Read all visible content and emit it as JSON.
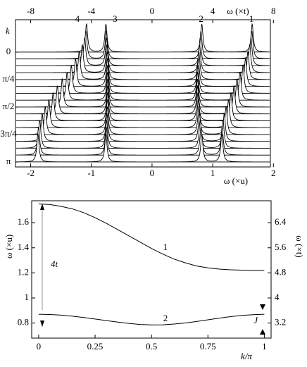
{
  "chart_data": [
    {
      "type": "waterfall",
      "x_label": "ω (×u)",
      "x2_label": "ω (×t)",
      "y_label": "k",
      "xlim": [
        -2.25,
        1.95
      ],
      "xticks": [
        -2,
        -1,
        0,
        1,
        2
      ],
      "x2lim": [
        -9,
        7.8
      ],
      "x2ticks": [
        -8,
        -4,
        0,
        4,
        8
      ],
      "k": [
        0,
        0.0625,
        0.125,
        0.1875,
        0.25,
        0.3125,
        0.375,
        0.4375,
        0.5,
        0.5625,
        0.625,
        0.6875,
        0.75,
        0.8125,
        0.875,
        0.9375,
        1
      ],
      "yticks": [
        {
          "value": 0,
          "label": "0"
        },
        {
          "value": 0.25,
          "label": "π/4"
        },
        {
          "value": 0.5,
          "label": "π/2"
        },
        {
          "value": 0.75,
          "label": "3π/4"
        },
        {
          "value": 1,
          "label": "π"
        }
      ],
      "series": [
        {
          "name": "4",
          "values": [
            -1.08,
            -1.09,
            -1.11,
            -1.15,
            -1.2,
            -1.26,
            -1.33,
            -1.4,
            -1.48,
            -1.56,
            -1.63,
            -1.7,
            -1.76,
            -1.81,
            -1.85,
            -1.87,
            -1.88
          ]
        },
        {
          "name": "3",
          "values": [
            -0.76,
            -0.754,
            -0.749,
            -0.743,
            -0.739,
            -0.735,
            -0.732,
            -0.731,
            -0.73,
            -0.731,
            -0.732,
            -0.735,
            -0.739,
            -0.743,
            -0.749,
            -0.754,
            -0.76
          ]
        },
        {
          "name": "2",
          "values": [
            0.82,
            0.806,
            0.793,
            0.781,
            0.771,
            0.762,
            0.755,
            0.751,
            0.75,
            0.751,
            0.755,
            0.762,
            0.771,
            0.781,
            0.793,
            0.806,
            0.82
          ]
        },
        {
          "name": "1",
          "values": [
            1.65,
            1.645,
            1.63,
            1.61,
            1.58,
            1.54,
            1.5,
            1.45,
            1.4,
            1.35,
            1.3,
            1.26,
            1.22,
            1.19,
            1.17,
            1.155,
            1.15
          ]
        }
      ]
    },
    {
      "type": "line",
      "x_label": "k/π",
      "y_label": "ω (×u)",
      "y2_label": "ω (×t)",
      "x": [
        0,
        0.05,
        0.1,
        0.15,
        0.2,
        0.25,
        0.3,
        0.35,
        0.4,
        0.45,
        0.5,
        0.55,
        0.6,
        0.65,
        0.7,
        0.75,
        0.8,
        0.85,
        0.9,
        0.95,
        1
      ],
      "xlim": [
        -0.031,
        1.03
      ],
      "xticks": [
        0,
        0.25,
        0.5,
        0.75,
        1
      ],
      "ylim": [
        0.68,
        1.775
      ],
      "yticks": [
        0.8,
        1,
        1.2,
        1.4,
        1.6
      ],
      "y2lim": [
        2.72,
        7.1
      ],
      "y2ticks": [
        3.2,
        4,
        4.8,
        5.6,
        6.4
      ],
      "series": [
        {
          "name": "1",
          "color": "#000000",
          "values": [
            1.75,
            1.745,
            1.73,
            1.71,
            1.68,
            1.64,
            1.595,
            1.545,
            1.495,
            1.445,
            1.395,
            1.35,
            1.31,
            1.28,
            1.255,
            1.24,
            1.23,
            1.225,
            1.222,
            1.22,
            1.22
          ]
        },
        {
          "name": "2",
          "color": "#000000",
          "values": [
            0.87,
            0.868,
            0.863,
            0.855,
            0.844,
            0.832,
            0.82,
            0.808,
            0.797,
            0.789,
            0.785,
            0.786,
            0.792,
            0.801,
            0.813,
            0.826,
            0.839,
            0.851,
            0.861,
            0.867,
            0.87
          ]
        }
      ],
      "annotations": [
        "4t",
        "J"
      ]
    }
  ]
}
